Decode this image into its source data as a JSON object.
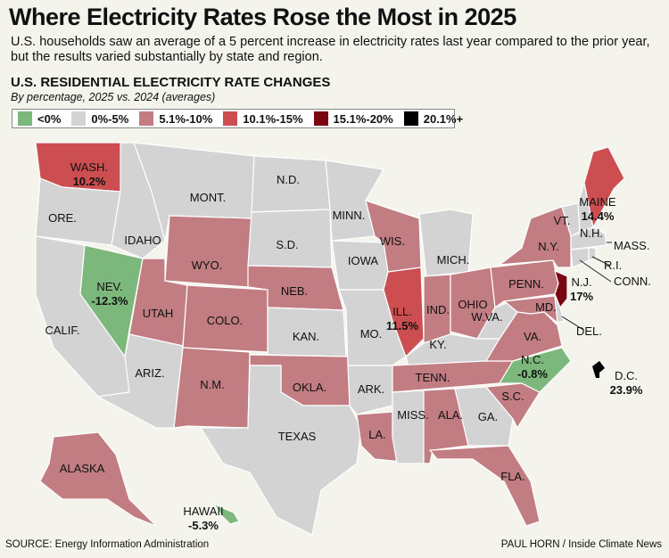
{
  "title": "Where Electricity Rates Rose the Most in 2025",
  "subtitle": "U.S. households saw an average of a 5 percent increase in electricity rates last year compared to the prior year, but the results varied substantially by state and region.",
  "heading": "U.S. RESIDENTIAL ELECTRICITY RATE CHANGES",
  "subheading": "By percentage, 2025 vs. 2024 (averages)",
  "legend": [
    {
      "label": "<0%",
      "color": "#7cb87b"
    },
    {
      "label": "0%-5%",
      "color": "#d3d3d3"
    },
    {
      "label": "5.1%-10%",
      "color": "#c27d82"
    },
    {
      "label": "10.1%-15%",
      "color": "#cd4e50"
    },
    {
      "label": "15.1%-20%",
      "color": "#7a0612"
    },
    {
      "label": "20.1%+",
      "color": "#000000"
    }
  ],
  "states": {
    "WA": {
      "label": "WASH.",
      "value": "10.2%",
      "category": 3
    },
    "OR": {
      "label": "ORE.",
      "category": 1
    },
    "CA": {
      "label": "CALIF.",
      "category": 1
    },
    "NV": {
      "label": "NEV.",
      "value": "-12.3%",
      "category": 0
    },
    "ID": {
      "label": "IDAHO",
      "category": 1
    },
    "MT": {
      "label": "MONT.",
      "category": 1
    },
    "WY": {
      "label": "WYO.",
      "category": 2
    },
    "UT": {
      "label": "UTAH",
      "category": 2
    },
    "CO": {
      "label": "COLO.",
      "category": 2
    },
    "AZ": {
      "label": "ARIZ.",
      "category": 1
    },
    "NM": {
      "label": "N.M.",
      "category": 2
    },
    "ND": {
      "label": "N.D.",
      "category": 1
    },
    "SD": {
      "label": "S.D.",
      "category": 1
    },
    "NE": {
      "label": "NEB.",
      "category": 2
    },
    "KS": {
      "label": "KAN.",
      "category": 1
    },
    "OK": {
      "label": "OKLA.",
      "category": 2
    },
    "TX": {
      "label": "TEXAS",
      "category": 1
    },
    "MN": {
      "label": "MINN.",
      "category": 1
    },
    "IA": {
      "label": "IOWA",
      "category": 1
    },
    "MO": {
      "label": "MO.",
      "category": 1
    },
    "AR": {
      "label": "ARK.",
      "category": 1
    },
    "LA": {
      "label": "LA.",
      "category": 2
    },
    "WI": {
      "label": "WIS.",
      "category": 2
    },
    "IL": {
      "label": "ILL.",
      "value": "11.5%",
      "category": 3
    },
    "MI": {
      "label": "MICH.",
      "category": 1
    },
    "IN": {
      "label": "IND.",
      "category": 2
    },
    "OH": {
      "label": "OHIO",
      "category": 2
    },
    "KY": {
      "label": "KY.",
      "category": 1
    },
    "TN": {
      "label": "TENN.",
      "category": 2
    },
    "MS": {
      "label": "MISS.",
      "category": 1
    },
    "AL": {
      "label": "ALA.",
      "category": 2
    },
    "GA": {
      "label": "GA.",
      "category": 1
    },
    "FL": {
      "label": "FLA.",
      "category": 2
    },
    "SC": {
      "label": "S.C.",
      "category": 2
    },
    "NC": {
      "label": "N.C.",
      "value": "-0.8%",
      "category": 0
    },
    "VA": {
      "label": "VA.",
      "category": 2
    },
    "WV": {
      "label": "W.VA.",
      "category": 1
    },
    "PA": {
      "label": "PENN.",
      "category": 2
    },
    "NY": {
      "label": "N.Y.",
      "category": 2
    },
    "MD": {
      "label": "MD.",
      "category": 2
    },
    "DE": {
      "label": "DEL.",
      "category": 1
    },
    "NJ": {
      "label": "N.J.",
      "value": "17%",
      "category": 4
    },
    "VT": {
      "label": "VT.",
      "category": 1
    },
    "NH": {
      "label": "N.H.",
      "category": 1
    },
    "ME": {
      "label": "MAINE",
      "value": "14.4%",
      "category": 3
    },
    "MA": {
      "label": "MASS.",
      "category": 1
    },
    "CT": {
      "label": "CONN.",
      "category": 1
    },
    "RI": {
      "label": "R.I.",
      "category": 1
    },
    "AK": {
      "label": "ALASKA",
      "category": 2
    },
    "HI": {
      "label": "HAWAII",
      "value": "-5.3%",
      "category": 0
    },
    "DC": {
      "label": "D.C.",
      "value": "23.9%",
      "category": 5
    }
  },
  "footer": {
    "source": "SOURCE: Energy Information Administration",
    "credit": "PAUL HORN / Inside Climate News"
  }
}
